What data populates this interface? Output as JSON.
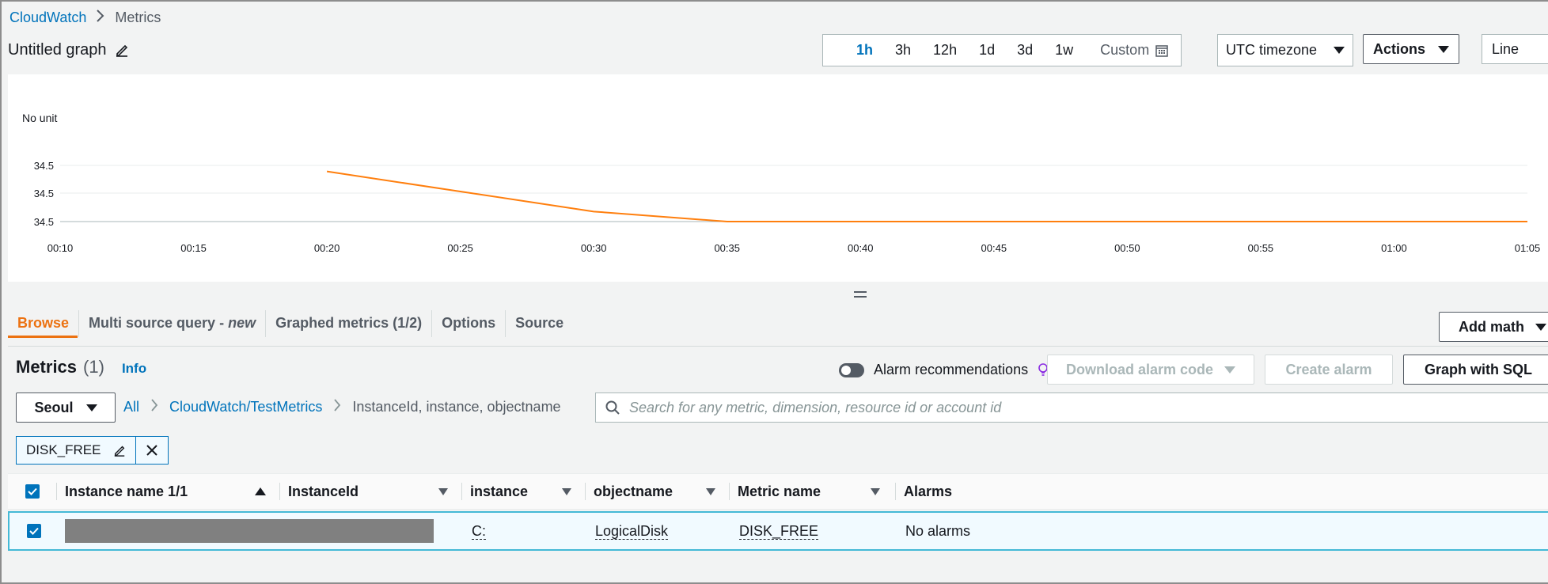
{
  "breadcrumb": {
    "root": "CloudWatch",
    "current": "Metrics"
  },
  "graph": {
    "title": "Untitled graph"
  },
  "time_range": {
    "options": [
      "1h",
      "3h",
      "12h",
      "1d",
      "3d",
      "1w"
    ],
    "active": "1h",
    "custom_label": "Custom",
    "timezone": "UTC timezone"
  },
  "actions_label": "Actions",
  "chart_type_label": "Line",
  "chart_data": {
    "type": "line",
    "ylabel": "No unit",
    "y_ticks": [
      "34.5",
      "34.5",
      "34.5"
    ],
    "x_ticks": [
      "00:10",
      "00:15",
      "00:20",
      "00:25",
      "00:30",
      "00:35",
      "00:40",
      "00:45",
      "00:50",
      "00:55",
      "01:00",
      "01:05"
    ],
    "series": [
      {
        "color": "#ff7f0e",
        "x": [
          "00:20",
          "00:25",
          "00:30",
          "00:35",
          "00:40",
          "00:45",
          "00:50",
          "00:55",
          "01:00",
          "01:05"
        ],
        "values": [
          34.55,
          34.53,
          34.51,
          34.5,
          34.5,
          34.5,
          34.5,
          34.5,
          34.5,
          34.5
        ]
      }
    ],
    "ylim": [
      34.5,
      34.56
    ]
  },
  "tabs": {
    "browse": "Browse",
    "multi_source": "Multi source query - ",
    "multi_source_new": "new",
    "graphed": "Graphed metrics (1/2)",
    "options": "Options",
    "source": "Source"
  },
  "add_math_label": "Add math",
  "metrics": {
    "title": "Metrics",
    "count": "(1)",
    "info": "Info",
    "alarm_recommendations": "Alarm recommendations",
    "download_alarm_code": "Download alarm code",
    "create_alarm": "Create alarm",
    "graph_with_sql": "Graph with SQL"
  },
  "filter": {
    "region": "Seoul",
    "path_all": "All",
    "path_namespace": "CloudWatch/TestMetrics",
    "path_dimensions": "InstanceId, instance, objectname",
    "search_placeholder": "Search for any metric, dimension, resource id or account id",
    "token": "DISK_FREE"
  },
  "table": {
    "columns": {
      "instance_name": "Instance name 1/1",
      "instance_id": "InstanceId",
      "instance": "instance",
      "objectname": "objectname",
      "metric_name": "Metric name",
      "alarms": "Alarms"
    },
    "rows": [
      {
        "instance": "C:",
        "objectname": "LogicalDisk",
        "metric_name": "DISK_FREE",
        "alarms": "No alarms"
      }
    ]
  },
  "colors": {
    "link": "#0073bb",
    "accent": "#ec7211",
    "series": "#ff7f0e"
  }
}
